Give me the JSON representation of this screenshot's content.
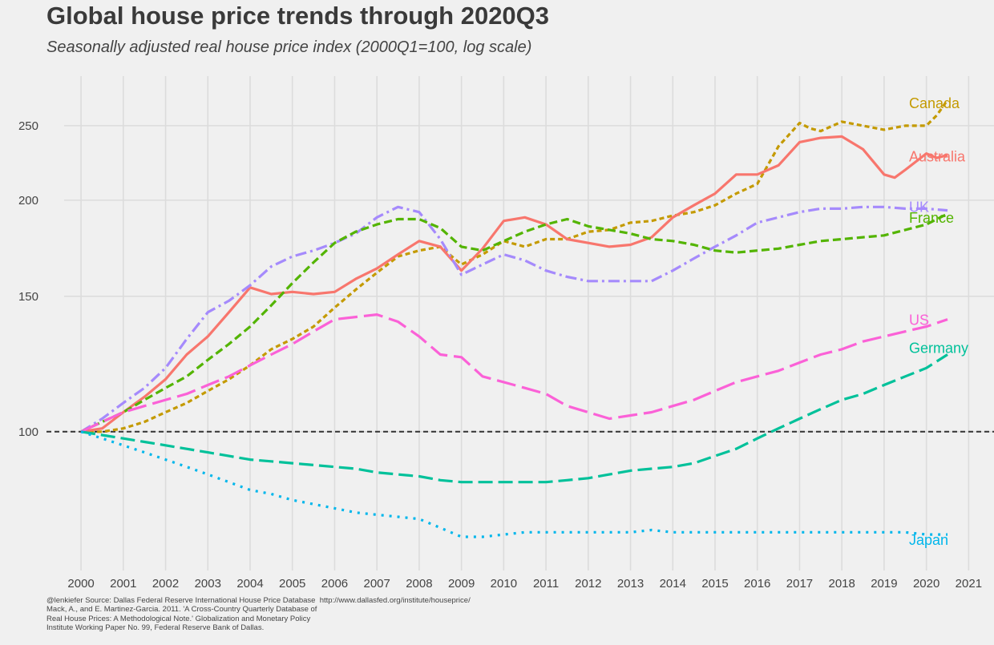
{
  "chart_data": {
    "type": "line",
    "title": "Global house price trends through 2020Q3",
    "subtitle": "Seasonally adjusted real house price index (2000Q1=100, log scale)",
    "xlabel": "",
    "ylabel": "",
    "y_scale": "log",
    "xlim": [
      1999.6,
      2021.6
    ],
    "ylim": [
      66,
      290
    ],
    "x_ticks": [
      2000,
      2001,
      2002,
      2003,
      2004,
      2005,
      2006,
      2007,
      2008,
      2009,
      2010,
      2011,
      2012,
      2013,
      2014,
      2015,
      2016,
      2017,
      2018,
      2019,
      2020,
      2021
    ],
    "x_tick_labels": [
      "2000",
      "2001",
      "2002",
      "2003",
      "2004",
      "2005",
      "2006",
      "2007",
      "2008",
      "2009",
      "2010",
      "2011",
      "2012",
      "2013",
      "2014",
      "2015",
      "2016",
      "2017",
      "2018",
      "2019",
      "2020",
      "2021"
    ],
    "y_ticks": [
      100,
      150,
      200,
      250
    ],
    "y_tick_labels": [
      "100",
      "150",
      "200",
      "250"
    ],
    "grid": true,
    "legend": "direct labels at right end of each line",
    "reference_line": {
      "y": 100,
      "style": "dashed",
      "color": "#333333"
    },
    "series": [
      {
        "name": "Canada",
        "color": "#c49a00",
        "dash": "6,4",
        "x": [
          2000,
          2000.5,
          2001,
          2001.5,
          2002,
          2002.5,
          2003,
          2003.5,
          2004,
          2004.5,
          2005,
          2005.5,
          2006,
          2006.5,
          2007,
          2007.5,
          2008,
          2008.5,
          2009,
          2009.5,
          2010,
          2010.5,
          2011,
          2011.5,
          2012,
          2012.5,
          2013,
          2013.5,
          2014,
          2014.5,
          2015,
          2015.5,
          2016,
          2016.5,
          2017,
          2017.25,
          2017.5,
          2018,
          2018.5,
          2019,
          2019.5,
          2020,
          2020.25,
          2020.5
        ],
        "y": [
          100,
          100,
          101,
          103,
          106,
          109,
          113,
          117,
          122,
          128,
          132,
          137,
          145,
          153,
          161,
          169,
          172,
          174,
          165,
          170,
          177,
          174,
          178,
          178,
          182,
          183,
          187,
          188,
          191,
          193,
          197,
          204,
          210,
          235,
          252,
          248,
          246,
          253,
          250,
          247,
          250,
          250,
          258,
          270
        ]
      },
      {
        "name": "Australia",
        "color": "#f8766d",
        "dash": "",
        "x": [
          2000,
          2000.5,
          2001,
          2001.5,
          2002,
          2002.5,
          2003,
          2003.5,
          2004,
          2004.5,
          2005,
          2005.5,
          2006,
          2006.5,
          2007,
          2007.5,
          2008,
          2008.5,
          2009,
          2009.5,
          2010,
          2010.5,
          2011,
          2011.5,
          2012,
          2012.5,
          2013,
          2013.5,
          2014,
          2014.5,
          2015,
          2015.5,
          2016,
          2016.5,
          2017,
          2017.5,
          2018,
          2018.5,
          2019,
          2019.25,
          2019.5,
          2020,
          2020.25,
          2020.5
        ],
        "y": [
          100,
          101,
          106,
          111,
          117,
          126,
          133,
          143,
          154,
          151,
          152,
          151,
          152,
          158,
          163,
          170,
          177,
          174,
          162,
          173,
          188,
          190,
          186,
          178,
          176,
          174,
          175,
          179,
          190,
          197,
          204,
          216,
          216,
          222,
          238,
          241,
          242,
          233,
          216,
          214,
          219,
          230,
          227,
          229
        ]
      },
      {
        "name": "UK",
        "color": "#a58afc",
        "dash": "14,5,3,5",
        "x": [
          2000,
          2000.5,
          2001,
          2001.5,
          2002,
          2002.5,
          2003,
          2003.5,
          2004,
          2004.5,
          2005,
          2005.5,
          2006,
          2006.5,
          2007,
          2007.5,
          2008,
          2008.5,
          2009,
          2009.5,
          2010,
          2010.5,
          2011,
          2011.5,
          2012,
          2012.5,
          2013,
          2013.5,
          2014,
          2014.5,
          2015,
          2015.5,
          2016,
          2016.5,
          2017,
          2017.5,
          2018,
          2018.5,
          2019,
          2019.5,
          2020,
          2020.5
        ],
        "y": [
          100,
          104,
          109,
          114,
          121,
          132,
          143,
          148,
          155,
          164,
          169,
          172,
          176,
          181,
          190,
          196,
          193,
          178,
          160,
          165,
          170,
          167,
          162,
          159,
          157,
          157,
          157,
          157,
          162,
          168,
          174,
          180,
          187,
          190,
          193,
          195,
          195,
          196,
          196,
          195,
          195,
          194
        ]
      },
      {
        "name": "France",
        "color": "#53b400",
        "dash": "10,5",
        "x": [
          2000,
          2000.5,
          2001,
          2001.5,
          2002,
          2002.5,
          2003,
          2003.5,
          2004,
          2004.5,
          2005,
          2005.5,
          2006,
          2006.5,
          2007,
          2007.5,
          2008,
          2008.5,
          2009,
          2009.5,
          2010,
          2010.5,
          2011,
          2011.5,
          2012,
          2012.5,
          2013,
          2013.5,
          2014,
          2014.5,
          2015,
          2015.5,
          2016,
          2016.5,
          2017,
          2017.5,
          2018,
          2018.5,
          2019,
          2019.5,
          2020,
          2020.5
        ],
        "y": [
          100,
          103,
          106,
          110,
          114,
          118,
          124,
          130,
          137,
          146,
          156,
          166,
          176,
          182,
          186,
          189,
          189,
          184,
          174,
          172,
          177,
          182,
          186,
          189,
          185,
          183,
          181,
          178,
          177,
          175,
          172,
          171,
          172,
          173,
          175,
          177,
          178,
          179,
          180,
          183,
          186,
          192
        ]
      },
      {
        "name": "US",
        "color": "#fb61d7",
        "dash": "24,8",
        "x": [
          2000,
          2000.5,
          2001,
          2001.5,
          2002,
          2002.5,
          2003,
          2003.5,
          2004,
          2004.5,
          2005,
          2005.5,
          2006,
          2006.5,
          2007,
          2007.5,
          2008,
          2008.5,
          2009,
          2009.5,
          2010,
          2010.5,
          2011,
          2011.5,
          2012,
          2012.5,
          2013,
          2013.5,
          2014,
          2014.5,
          2015,
          2015.5,
          2016,
          2016.5,
          2017,
          2017.5,
          2018,
          2018.5,
          2019,
          2019.5,
          2020,
          2020.5
        ],
        "y": [
          100,
          103,
          106,
          108,
          110,
          112,
          115,
          118,
          122,
          126,
          130,
          135,
          140,
          141,
          142,
          139,
          133,
          126,
          125,
          118,
          116,
          114,
          112,
          108,
          106,
          104,
          105,
          106,
          108,
          110,
          113,
          116,
          118,
          120,
          123,
          126,
          128,
          131,
          133,
          135,
          137,
          140
        ]
      },
      {
        "name": "Germany",
        "color": "#00c19a",
        "dash": "18,7",
        "x": [
          2000,
          2000.5,
          2001,
          2001.5,
          2002,
          2002.5,
          2003,
          2003.5,
          2004,
          2004.5,
          2005,
          2005.5,
          2006,
          2006.5,
          2007,
          2007.5,
          2008,
          2008.5,
          2009,
          2009.5,
          2010,
          2010.5,
          2011,
          2011.5,
          2012,
          2012.5,
          2013,
          2013.5,
          2014,
          2014.5,
          2015,
          2015.5,
          2016,
          2016.5,
          2017,
          2017.5,
          2018,
          2018.5,
          2019,
          2019.5,
          2020,
          2020.5
        ],
        "y": [
          100,
          99,
          98,
          97,
          96,
          95,
          94,
          93,
          92,
          91.5,
          91,
          90.5,
          90,
          89.5,
          88.5,
          88,
          87.5,
          86.5,
          86,
          86,
          86,
          86,
          86,
          86.5,
          87,
          88,
          89,
          89.5,
          90,
          91,
          93,
          95,
          98,
          101,
          104,
          107,
          110,
          112,
          115,
          118,
          121,
          126
        ]
      },
      {
        "name": "Japan",
        "color": "#00b6eb",
        "dash": "3,7",
        "x": [
          2000,
          2000.5,
          2001,
          2001.5,
          2002,
          2002.5,
          2003,
          2003.5,
          2004,
          2004.5,
          2005,
          2005.5,
          2006,
          2006.5,
          2007,
          2007.5,
          2008,
          2008.5,
          2009,
          2009.5,
          2010,
          2010.5,
          2011,
          2011.5,
          2012,
          2012.5,
          2013,
          2013.5,
          2014,
          2014.5,
          2015,
          2015.5,
          2016,
          2016.5,
          2017,
          2017.5,
          2018,
          2018.5,
          2019,
          2019.5,
          2020,
          2020.5
        ],
        "y": [
          100,
          98,
          96,
          94,
          92,
          90,
          88,
          86,
          84,
          83,
          81.5,
          80.5,
          79.5,
          78.5,
          78,
          77.5,
          77,
          75,
          73,
          73,
          73.5,
          74,
          74,
          74,
          74,
          74,
          74,
          74.5,
          74,
          74,
          74,
          74,
          74,
          74,
          74,
          74,
          74,
          74,
          74,
          74,
          73.5,
          73.5
        ]
      }
    ]
  },
  "caption": "@lenkiefer Source: Dallas Federal Reserve International House Price Database  http://www.dallasfed.org/institute/houseprice/\nMack, A., and E. Martinez-Garcia. 2011. 'A Cross-Country Quarterly Database of\nReal House Prices: A Methodological Note.' Globalization and Monetary Policy\nInstitute Working Paper No. 99, Federal Reserve Bank of Dallas."
}
